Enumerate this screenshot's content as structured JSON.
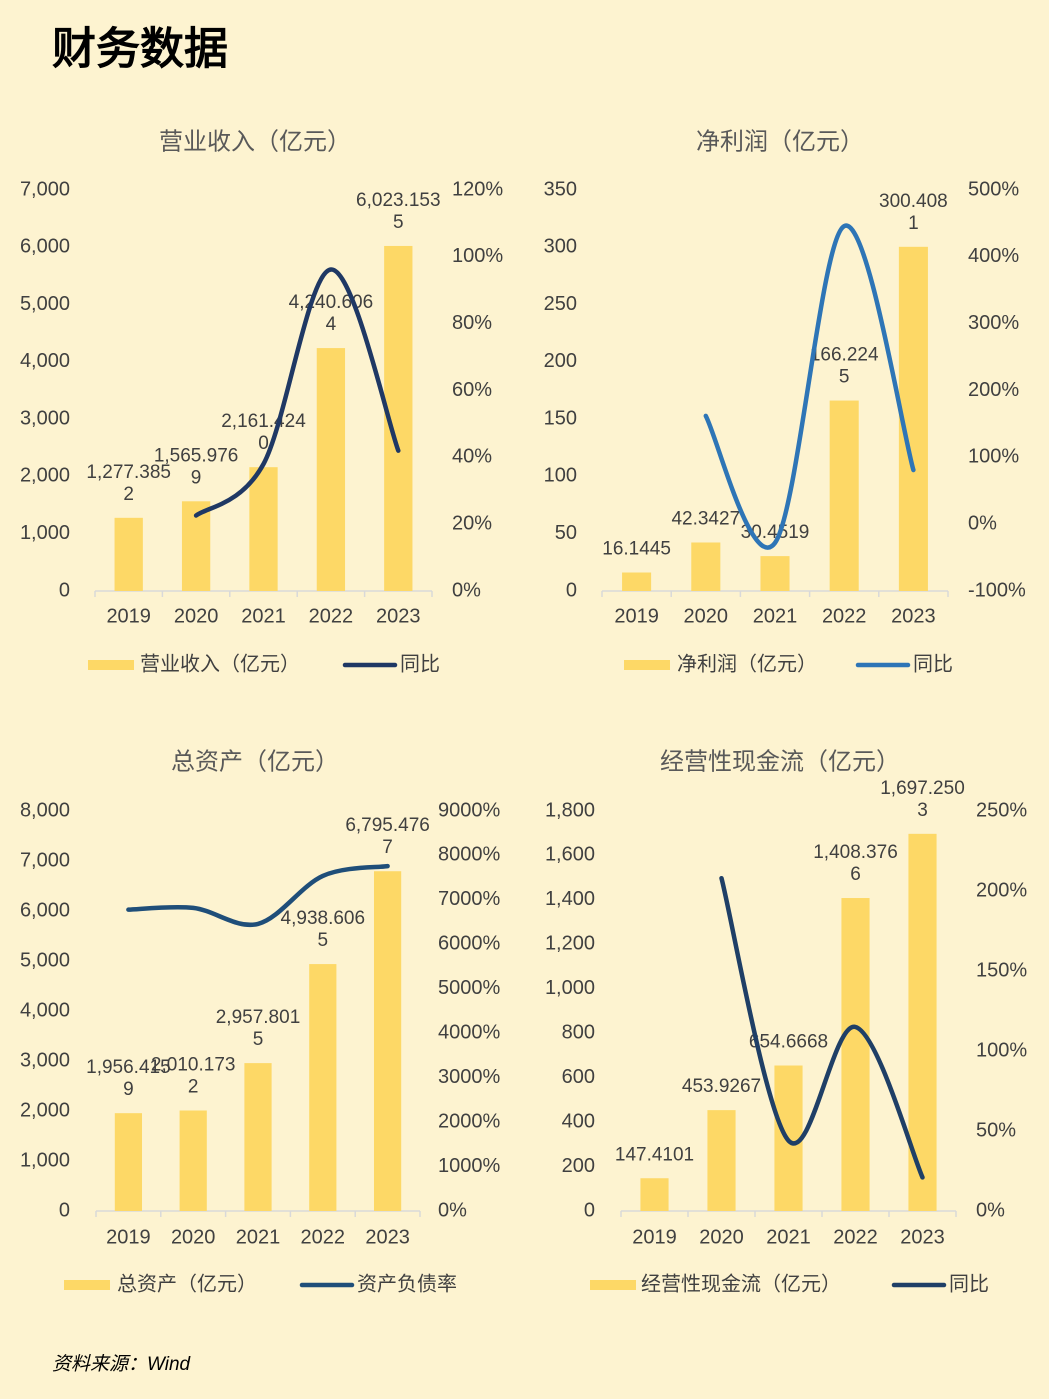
{
  "title": "财务数据",
  "source": "资料来源：Wind",
  "chart_data": [
    {
      "type": "combo",
      "title": "营业收入（亿元）",
      "categories": [
        "2019",
        "2020",
        "2021",
        "2022",
        "2023"
      ],
      "series": [
        {
          "name": "营业收入（亿元）",
          "type": "bar",
          "color": "#fdd866",
          "values": [
            1277.3852,
            1565.9769,
            2161.424,
            4240.6064,
            6023.1535
          ],
          "value_labels": [
            "1,277.3852",
            "1,565.9769",
            "2,161.4240",
            "4,240.6064",
            "6,023.1535"
          ]
        },
        {
          "name": "同比",
          "type": "line",
          "axis": "y2",
          "color": "#1f3864",
          "values": [
            null,
            22.6,
            38.0,
            96.2,
            42.0
          ]
        }
      ],
      "ylim": [
        0,
        7000
      ],
      "yticks": [
        0,
        {
          "value": 1000,
          "label": "1,000"
        },
        {
          "value": 2000,
          "label": "2,000"
        },
        {
          "value": 3000,
          "label": "3,000"
        },
        {
          "value": 4000,
          "label": "4,000"
        },
        {
          "value": 5000,
          "label": "5,000"
        },
        {
          "value": 6000,
          "label": "6,000"
        },
        {
          "value": 7000,
          "label": "7,000"
        }
      ],
      "y2lim": [
        0,
        120
      ],
      "y2ticks": [
        {
          "value": 0,
          "label": "0%"
        },
        {
          "value": 20,
          "label": "20%"
        },
        {
          "value": 40,
          "label": "40%"
        },
        {
          "value": 60,
          "label": "60%"
        },
        {
          "value": 80,
          "label": "80%"
        },
        {
          "value": 100,
          "label": "100%"
        },
        {
          "value": 120,
          "label": "120%"
        }
      ]
    },
    {
      "type": "combo",
      "title": "净利润（亿元）",
      "categories": [
        "2019",
        "2020",
        "2021",
        "2022",
        "2023"
      ],
      "series": [
        {
          "name": "净利润（亿元）",
          "type": "bar",
          "color": "#fdd866",
          "values": [
            16.1445,
            42.3427,
            30.4519,
            166.2245,
            300.4081
          ]
        },
        {
          "name": "同比",
          "type": "line",
          "axis": "y2",
          "color": "#2e75b6",
          "values": [
            null,
            162,
            -28,
            446,
            81
          ]
        }
      ],
      "ylim": [
        0,
        350
      ],
      "yticks": [
        0,
        50,
        100,
        150,
        200,
        250,
        300,
        350
      ],
      "y2lim": [
        -100,
        500
      ],
      "y2ticks": [
        {
          "value": -100,
          "label": "-100%"
        },
        {
          "value": 0,
          "label": "0%"
        },
        {
          "value": 100,
          "label": "100%"
        },
        {
          "value": 200,
          "label": "200%"
        },
        {
          "value": 300,
          "label": "300%"
        },
        {
          "value": 400,
          "label": "400%"
        },
        {
          "value": 500,
          "label": "500%"
        }
      ]
    },
    {
      "type": "combo",
      "title": "总资产（亿元）",
      "categories": [
        "2019",
        "2020",
        "2021",
        "2022",
        "2023"
      ],
      "series": [
        {
          "name": "总资产（亿元）",
          "type": "bar",
          "color": "#fdd866",
          "values": [
            1956.4159,
            2010.1732,
            2957.8015,
            4938.6065,
            6795.4767
          ],
          "value_labels": [
            "1,956.4159",
            "2,010.1732",
            "2,957.8015",
            "4,938.6065",
            "6,795.4767"
          ]
        },
        {
          "name": "资产负债率",
          "type": "line",
          "axis": "y2",
          "color": "#1f4e79",
          "values": [
            6780,
            6820,
            6460,
            7540,
            7760
          ]
        }
      ],
      "ylim": [
        0,
        8000
      ],
      "yticks": [
        0,
        {
          "value": 1000,
          "label": "1,000"
        },
        {
          "value": 2000,
          "label": "2,000"
        },
        {
          "value": 3000,
          "label": "3,000"
        },
        {
          "value": 4000,
          "label": "4,000"
        },
        {
          "value": 5000,
          "label": "5,000"
        },
        {
          "value": 6000,
          "label": "6,000"
        },
        {
          "value": 7000,
          "label": "7,000"
        },
        {
          "value": 8000,
          "label": "8,000"
        }
      ],
      "y2lim": [
        0,
        9000
      ],
      "y2ticks": [
        {
          "value": 0,
          "label": "0%"
        },
        {
          "value": 1000,
          "label": "1000%"
        },
        {
          "value": 2000,
          "label": "2000%"
        },
        {
          "value": 3000,
          "label": "3000%"
        },
        {
          "value": 4000,
          "label": "4000%"
        },
        {
          "value": 5000,
          "label": "5000%"
        },
        {
          "value": 6000,
          "label": "6000%"
        },
        {
          "value": 7000,
          "label": "7000%"
        },
        {
          "value": 8000,
          "label": "8000%"
        },
        {
          "value": 9000,
          "label": "9000%"
        }
      ]
    },
    {
      "type": "combo",
      "title": "经营性现金流（亿元）",
      "categories": [
        "2019",
        "2020",
        "2021",
        "2022",
        "2023"
      ],
      "series": [
        {
          "name": "经营性现金流（亿元）",
          "type": "bar",
          "color": "#fdd866",
          "values": [
            147.4101,
            453.9267,
            654.6668,
            1408.3766,
            1697.2503
          ],
          "value_labels": [
            "147.4101",
            "453.9267",
            "654.6668",
            "1,408.3766",
            "1,697.2503"
          ]
        },
        {
          "name": "同比",
          "type": "line",
          "axis": "y2",
          "color": "#1f3f66",
          "values": [
            null,
            208,
            44,
            115,
            21
          ]
        }
      ],
      "ylim": [
        0,
        1800
      ],
      "yticks": [
        0,
        200,
        400,
        600,
        800,
        {
          "value": 1000,
          "label": "1,000"
        },
        {
          "value": 1200,
          "label": "1,200"
        },
        {
          "value": 1400,
          "label": "1,400"
        },
        {
          "value": 1600,
          "label": "1,600"
        },
        {
          "value": 1800,
          "label": "1,800"
        }
      ],
      "y2lim": [
        0,
        250
      ],
      "y2ticks": [
        {
          "value": 0,
          "label": "0%"
        },
        {
          "value": 50,
          "label": "50%"
        },
        {
          "value": 100,
          "label": "100%"
        },
        {
          "value": 150,
          "label": "150%"
        },
        {
          "value": 200,
          "label": "200%"
        },
        {
          "value": 250,
          "label": "250%"
        }
      ]
    }
  ]
}
